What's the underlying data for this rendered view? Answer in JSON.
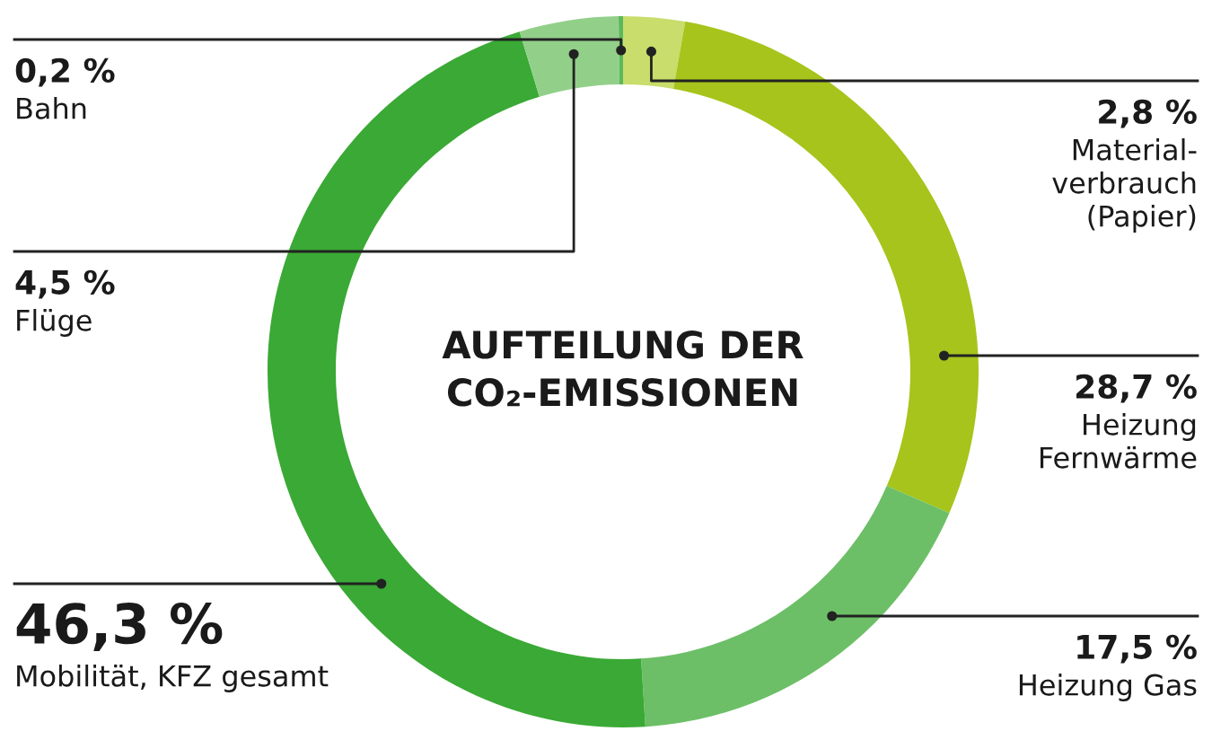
{
  "chart_data": {
    "type": "donut",
    "title": "AUFTEILUNG DER\nCO₂-EMISSIONEN",
    "categories": [
      "Material-\nverbrauch\n(Papier)",
      "Heizung\nFernwärme",
      "Heizung Gas",
      "Mobilität, KFZ gesamt",
      "Flüge",
      "Bahn"
    ],
    "values": [
      2.8,
      28.7,
      17.5,
      46.3,
      4.5,
      0.2
    ],
    "value_labels": [
      "2,8 %",
      "28,7 %",
      "17,5 %",
      "46,3 %",
      "4,5 %",
      "0,2 %"
    ],
    "colors": [
      "#c8dd6b",
      "#a6c41b",
      "#6cbf66",
      "#3aa935",
      "#92d08a",
      "#5cb85c"
    ],
    "legend": false
  }
}
